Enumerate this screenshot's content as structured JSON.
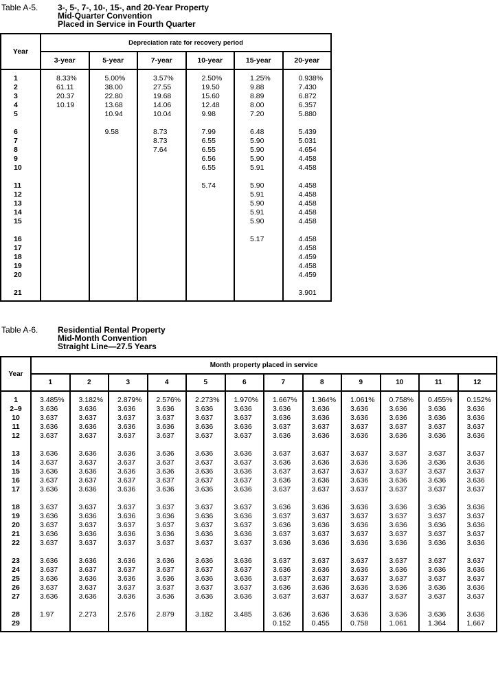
{
  "table_a5": {
    "label": "Table A-5.",
    "title_lines": [
      "3-, 5-, 7-, 10-, 15-, and 20-Year Property",
      "Mid-Quarter Convention",
      "Placed in Service in Fourth Quarter"
    ],
    "year_header": "Year",
    "group_header": "Depreciation rate for recovery period",
    "columns": [
      "3-year",
      "5-year",
      "7-year",
      "10-year",
      "15-year",
      "20-year"
    ],
    "groups": [
      [
        {
          "year": "1",
          "values": [
            "8.33%",
            "5.00%",
            "3.57%",
            "2.50%",
            "1.25%",
            "0.938%"
          ]
        },
        {
          "year": "2",
          "values": [
            "61.11",
            "38.00",
            "27.55",
            "19.50",
            "9.88",
            "7.430"
          ]
        },
        {
          "year": "3",
          "values": [
            "20.37",
            "22.80",
            "19.68",
            "15.60",
            "8.89",
            "6.872"
          ]
        },
        {
          "year": "4",
          "values": [
            "10.19",
            "13.68",
            "14.06",
            "12.48",
            "8.00",
            "6.357"
          ]
        },
        {
          "year": "5",
          "values": [
            "",
            "10.94",
            "10.04",
            "9.98",
            "7.20",
            "5.880"
          ]
        }
      ],
      [
        {
          "year": "6",
          "values": [
            "",
            "9.58",
            "8.73",
            "7.99",
            "6.48",
            "5.439"
          ]
        },
        {
          "year": "7",
          "values": [
            "",
            "",
            "8.73",
            "6.55",
            "5.90",
            "5.031"
          ]
        },
        {
          "year": "8",
          "values": [
            "",
            "",
            "7.64",
            "6.55",
            "5.90",
            "4.654"
          ]
        },
        {
          "year": "9",
          "values": [
            "",
            "",
            "",
            "6.56",
            "5.90",
            "4.458"
          ]
        },
        {
          "year": "10",
          "values": [
            "",
            "",
            "",
            "6.55",
            "5.91",
            "4.458"
          ]
        }
      ],
      [
        {
          "year": "11",
          "values": [
            "",
            "",
            "",
            "5.74",
            "5.90",
            "4.458"
          ]
        },
        {
          "year": "12",
          "values": [
            "",
            "",
            "",
            "",
            "5.91",
            "4.458"
          ]
        },
        {
          "year": "13",
          "values": [
            "",
            "",
            "",
            "",
            "5.90",
            "4.458"
          ]
        },
        {
          "year": "14",
          "values": [
            "",
            "",
            "",
            "",
            "5.91",
            "4.458"
          ]
        },
        {
          "year": "15",
          "values": [
            "",
            "",
            "",
            "",
            "5.90",
            "4.458"
          ]
        }
      ],
      [
        {
          "year": "16",
          "values": [
            "",
            "",
            "",
            "",
            "5.17",
            "4.458"
          ]
        },
        {
          "year": "17",
          "values": [
            "",
            "",
            "",
            "",
            "",
            "4.458"
          ]
        },
        {
          "year": "18",
          "values": [
            "",
            "",
            "",
            "",
            "",
            "4.459"
          ]
        },
        {
          "year": "19",
          "values": [
            "",
            "",
            "",
            "",
            "",
            "4.458"
          ]
        },
        {
          "year": "20",
          "values": [
            "",
            "",
            "",
            "",
            "",
            "4.459"
          ]
        }
      ],
      [
        {
          "year": "21",
          "values": [
            "",
            "",
            "",
            "",
            "",
            "3.901"
          ]
        }
      ]
    ]
  },
  "table_a6": {
    "label": "Table A-6.",
    "title_lines": [
      "Residential Rental Property",
      "Mid-Month Convention",
      "Straight Line—27.5 Years"
    ],
    "year_header": "Year",
    "group_header": "Month property placed in service",
    "columns": [
      "1",
      "2",
      "3",
      "4",
      "5",
      "6",
      "7",
      "8",
      "9",
      "10",
      "11",
      "12"
    ],
    "groups": [
      [
        {
          "year": "1",
          "values": [
            "3.485%",
            "3.182%",
            "2.879%",
            "2.576%",
            "2.273%",
            "1.970%",
            "1.667%",
            "1.364%",
            "1.061%",
            "0.758%",
            "0.455%",
            "0.152%"
          ]
        },
        {
          "year": "2–9",
          "values": [
            "3.636",
            "3.636",
            "3.636",
            "3.636",
            "3.636",
            "3.636",
            "3.636",
            "3.636",
            "3.636",
            "3.636",
            "3.636",
            "3.636"
          ]
        },
        {
          "year": "10",
          "values": [
            "3.637",
            "3.637",
            "3.637",
            "3.637",
            "3.637",
            "3.637",
            "3.636",
            "3.636",
            "3.636",
            "3.636",
            "3.636",
            "3.636"
          ]
        },
        {
          "year": "11",
          "values": [
            "3.636",
            "3.636",
            "3.636",
            "3.636",
            "3.636",
            "3.636",
            "3.637",
            "3.637",
            "3.637",
            "3.637",
            "3.637",
            "3.637"
          ]
        },
        {
          "year": "12",
          "values": [
            "3.637",
            "3.637",
            "3.637",
            "3.637",
            "3.637",
            "3.637",
            "3.636",
            "3.636",
            "3.636",
            "3.636",
            "3.636",
            "3.636"
          ]
        }
      ],
      [
        {
          "year": "13",
          "values": [
            "3.636",
            "3.636",
            "3.636",
            "3.636",
            "3.636",
            "3.636",
            "3.637",
            "3.637",
            "3.637",
            "3.637",
            "3.637",
            "3.637"
          ]
        },
        {
          "year": "14",
          "values": [
            "3.637",
            "3.637",
            "3.637",
            "3.637",
            "3.637",
            "3.637",
            "3.636",
            "3.636",
            "3.636",
            "3.636",
            "3.636",
            "3.636"
          ]
        },
        {
          "year": "15",
          "values": [
            "3.636",
            "3.636",
            "3.636",
            "3.636",
            "3.636",
            "3.636",
            "3.637",
            "3.637",
            "3.637",
            "3.637",
            "3.637",
            "3.637"
          ]
        },
        {
          "year": "16",
          "values": [
            "3.637",
            "3.637",
            "3.637",
            "3.637",
            "3.637",
            "3.637",
            "3.636",
            "3.636",
            "3.636",
            "3.636",
            "3.636",
            "3.636"
          ]
        },
        {
          "year": "17",
          "values": [
            "3.636",
            "3.636",
            "3.636",
            "3.636",
            "3.636",
            "3.636",
            "3.637",
            "3.637",
            "3.637",
            "3.637",
            "3.637",
            "3.637"
          ]
        }
      ],
      [
        {
          "year": "18",
          "values": [
            "3.637",
            "3.637",
            "3.637",
            "3.637",
            "3.637",
            "3.637",
            "3.636",
            "3.636",
            "3.636",
            "3.636",
            "3.636",
            "3.636"
          ]
        },
        {
          "year": "19",
          "values": [
            "3.636",
            "3.636",
            "3.636",
            "3.636",
            "3.636",
            "3.636",
            "3.637",
            "3.637",
            "3.637",
            "3.637",
            "3.637",
            "3.637"
          ]
        },
        {
          "year": "20",
          "values": [
            "3.637",
            "3.637",
            "3.637",
            "3.637",
            "3.637",
            "3.637",
            "3.636",
            "3.636",
            "3.636",
            "3.636",
            "3.636",
            "3.636"
          ]
        },
        {
          "year": "21",
          "values": [
            "3.636",
            "3.636",
            "3.636",
            "3.636",
            "3.636",
            "3.636",
            "3.637",
            "3.637",
            "3.637",
            "3.637",
            "3.637",
            "3.637"
          ]
        },
        {
          "year": "22",
          "values": [
            "3.637",
            "3.637",
            "3.637",
            "3.637",
            "3.637",
            "3.637",
            "3.636",
            "3.636",
            "3.636",
            "3.636",
            "3.636",
            "3.636"
          ]
        }
      ],
      [
        {
          "year": "23",
          "values": [
            "3.636",
            "3.636",
            "3.636",
            "3.636",
            "3.636",
            "3.636",
            "3.637",
            "3.637",
            "3.637",
            "3.637",
            "3.637",
            "3.637"
          ]
        },
        {
          "year": "24",
          "values": [
            "3.637",
            "3.637",
            "3.637",
            "3.637",
            "3.637",
            "3.637",
            "3.636",
            "3.636",
            "3.636",
            "3.636",
            "3.636",
            "3.636"
          ]
        },
        {
          "year": "25",
          "values": [
            "3.636",
            "3.636",
            "3.636",
            "3.636",
            "3.636",
            "3.636",
            "3.637",
            "3.637",
            "3.637",
            "3.637",
            "3.637",
            "3.637"
          ]
        },
        {
          "year": "26",
          "values": [
            "3.637",
            "3.637",
            "3.637",
            "3.637",
            "3.637",
            "3.637",
            "3.636",
            "3.636",
            "3.636",
            "3.636",
            "3.636",
            "3.636"
          ]
        },
        {
          "year": "27",
          "values": [
            "3.636",
            "3.636",
            "3.636",
            "3.636",
            "3.636",
            "3.636",
            "3.637",
            "3.637",
            "3.637",
            "3.637",
            "3.637",
            "3.637"
          ]
        }
      ],
      [
        {
          "year": "28",
          "values": [
            "1.97",
            "2.273",
            "2.576",
            "2.879",
            "3.182",
            "3.485",
            "3.636",
            "3.636",
            "3.636",
            "3.636",
            "3.636",
            "3.636"
          ]
        },
        {
          "year": "29",
          "values": [
            "",
            "",
            "",
            "",
            "",
            "",
            "0.152",
            "0.455",
            "0.758",
            "1.061",
            "1.364",
            "1.667"
          ]
        }
      ]
    ]
  }
}
